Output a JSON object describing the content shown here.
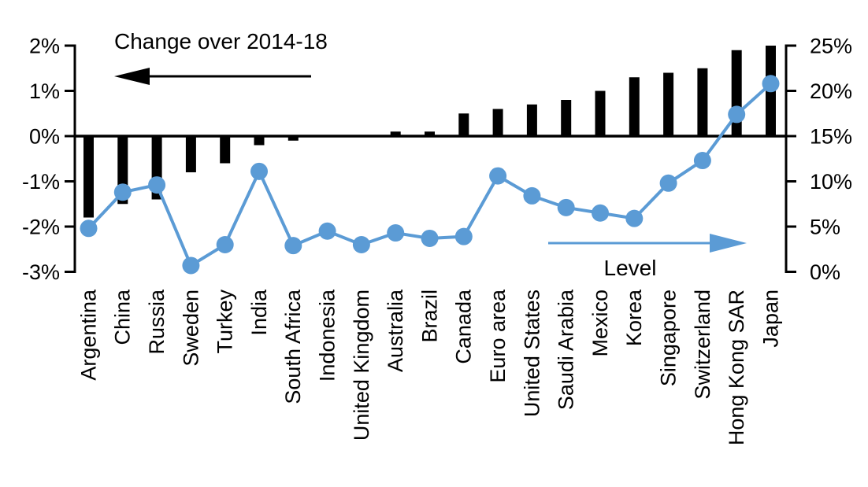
{
  "chart_data": {
    "type": "bar",
    "subtype": "combo-bar-line-dual-axis",
    "title": "",
    "categories": [
      "Argentina",
      "China",
      "Russia",
      "Sweden",
      "Turkey",
      "India",
      "South Africa",
      "Indonesia",
      "United Kingdom",
      "Australia",
      "Brazil",
      "Canada",
      "Euro area",
      "United States",
      "Saudi Arabia",
      "Mexico",
      "Korea",
      "Singapore",
      "Switzerland",
      "Hong Kong SAR",
      "Japan"
    ],
    "series": [
      {
        "name": "Change over 2014-18",
        "type": "bar",
        "axis": "left",
        "color": "#000000",
        "values": [
          -1.8,
          -1.5,
          -1.4,
          -0.8,
          -0.6,
          -0.2,
          -0.1,
          0,
          0,
          0.1,
          0.1,
          0.5,
          0.6,
          0.7,
          0.8,
          1.0,
          1.3,
          1.4,
          1.5,
          1.9,
          2.0
        ]
      },
      {
        "name": "Level",
        "type": "line",
        "axis": "right",
        "color": "#5B9BD5",
        "marker": "circle",
        "values": [
          4.8,
          8.8,
          9.6,
          0.7,
          3.0,
          11.1,
          2.9,
          4.5,
          3.0,
          4.3,
          3.7,
          3.9,
          10.6,
          8.4,
          7.1,
          6.5,
          5.9,
          9.8,
          12.3,
          17.4,
          20.8
        ]
      }
    ],
    "left_axis": {
      "tick_labels": [
        "2%",
        "1%",
        "0%",
        "-1%",
        "-2%",
        "-3%"
      ],
      "tick_values": [
        2,
        1,
        0,
        -1,
        -2,
        -3
      ],
      "min": -3,
      "max": 2
    },
    "right_axis": {
      "tick_labels": [
        "25%",
        "20%",
        "15%",
        "10%",
        "5%",
        "0%"
      ],
      "tick_values": [
        25,
        20,
        15,
        10,
        5,
        0
      ],
      "min": 0,
      "max": 25
    },
    "annotations": [
      {
        "text": "Change over 2014-18",
        "arrow_direction": "left",
        "refers_to": "bar series, left axis",
        "color": "#000000"
      },
      {
        "text": "Level",
        "arrow_direction": "right",
        "refers_to": "line series, right axis",
        "color": "#5B9BD5"
      }
    ],
    "grid": false,
    "legend_position": "in-plot annotations",
    "background": "#FFFFFF"
  }
}
